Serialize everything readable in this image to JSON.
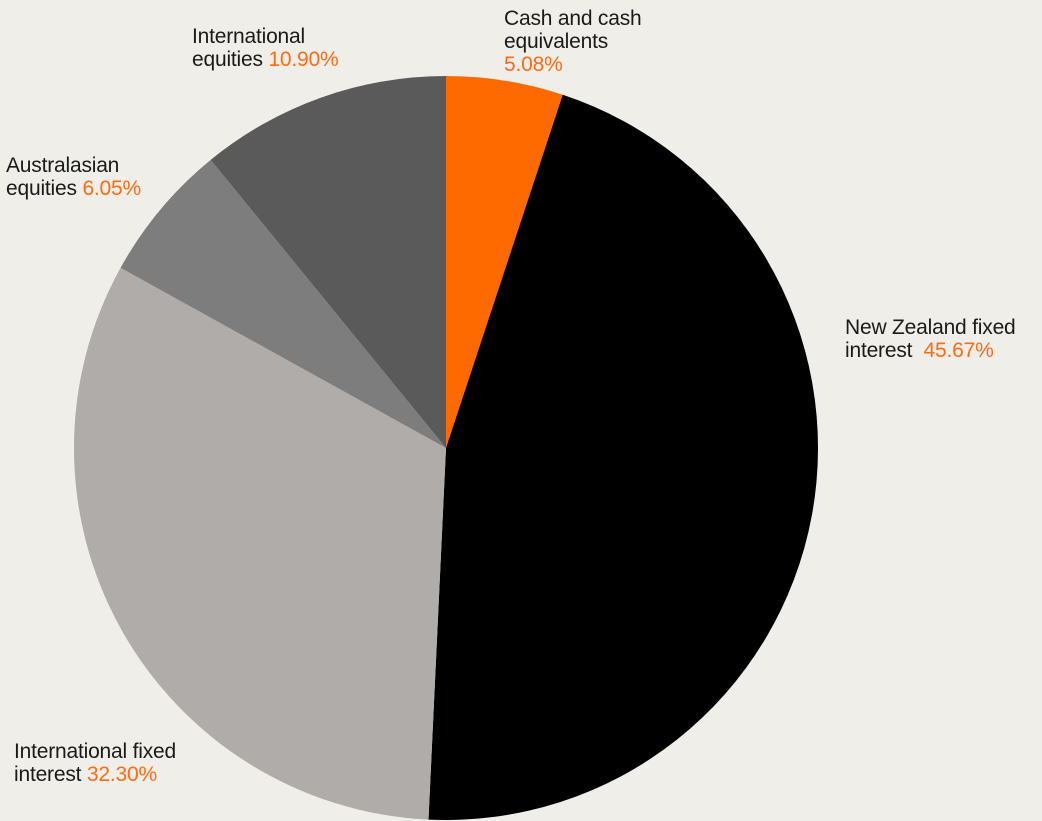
{
  "chart_data": {
    "type": "pie",
    "start_angle_deg": 0,
    "direction": "clockwise",
    "slices": [
      {
        "name_line1": "Cash and cash",
        "name_line2": "equivalents",
        "value": 5.08,
        "value_label": "5.08%",
        "color": "#FF6A00"
      },
      {
        "name_line1": "New Zealand fixed",
        "name_line2": "interest",
        "value": 45.67,
        "value_label": "45.67%",
        "color": "#000000"
      },
      {
        "name_line1": "International fixed",
        "name_line2": "interest",
        "value": 32.3,
        "value_label": "32.30%",
        "color": "#AFACAA"
      },
      {
        "name_line1": "Australasian",
        "name_line2": "equities",
        "value": 6.05,
        "value_label": "6.05%",
        "color": "#7D7D7D"
      },
      {
        "name_line1": "International",
        "name_line2": "equities",
        "value": 10.9,
        "value_label": "10.90%",
        "color": "#5A5A5A"
      }
    ]
  },
  "colors": {
    "background": "#EFEEE9",
    "accent": "#FF6A13",
    "label_text": "#1A1A1A"
  }
}
